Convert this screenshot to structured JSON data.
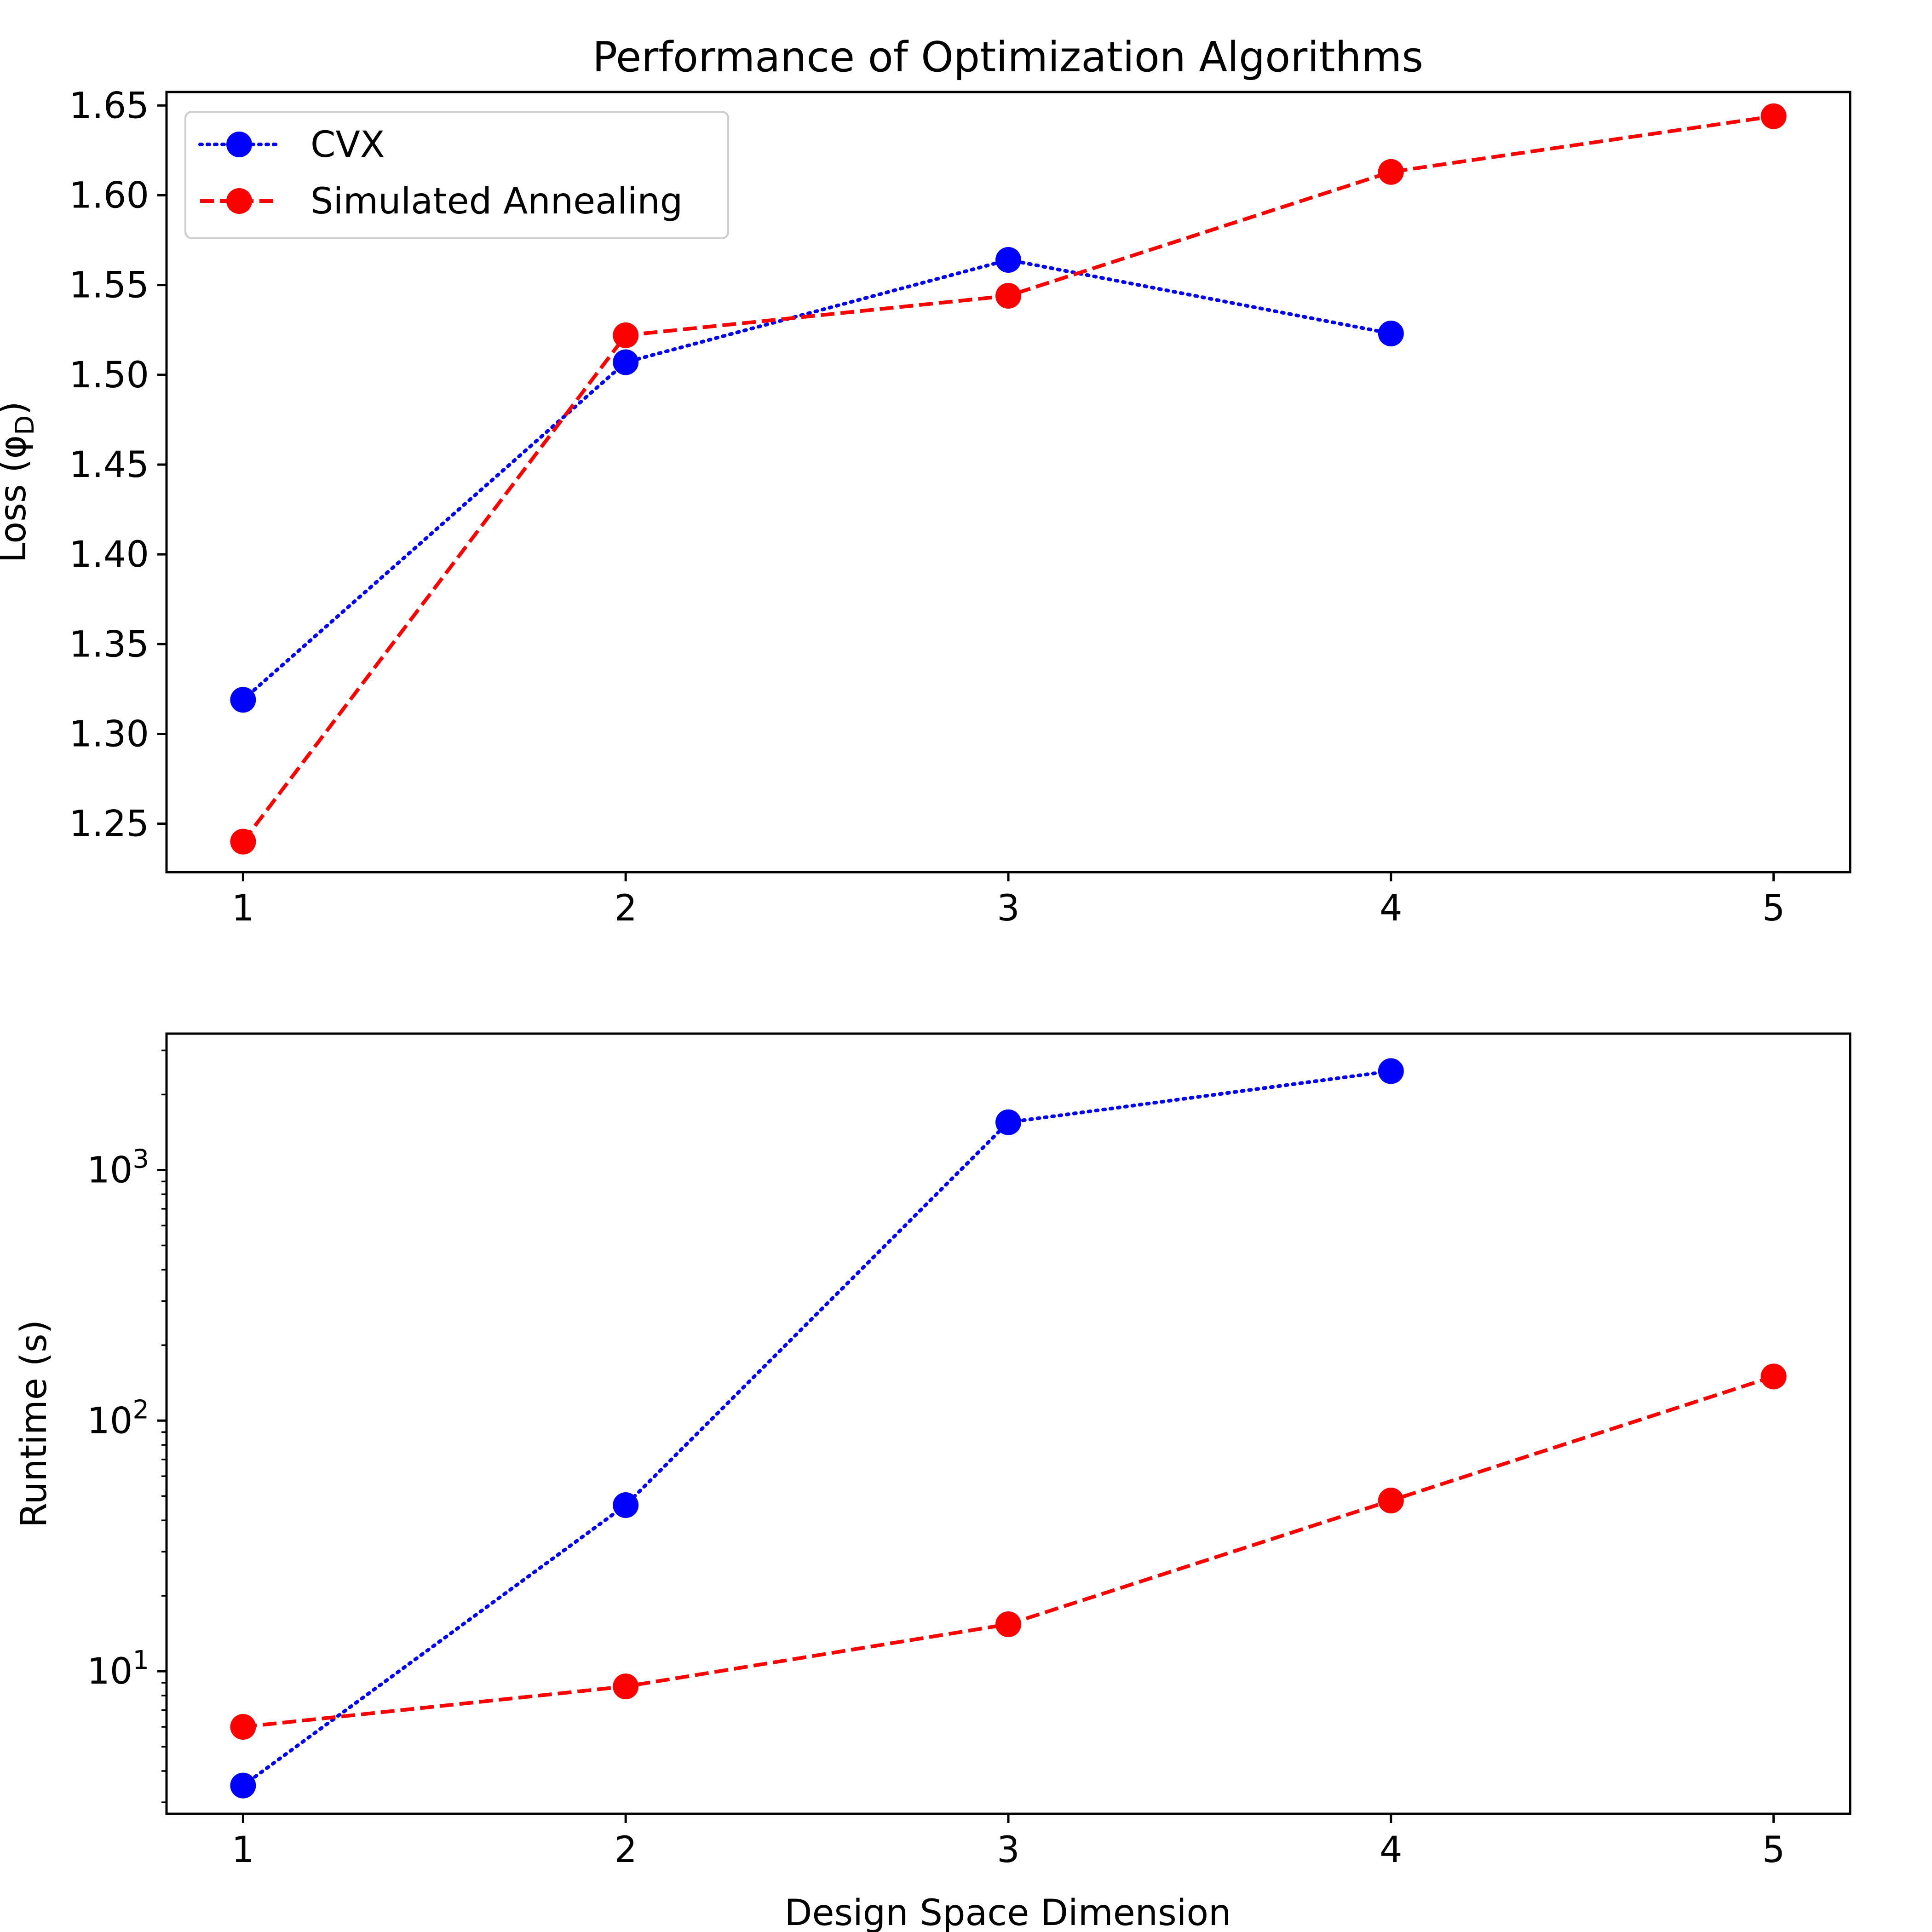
{
  "figure": {
    "title": "Performance of Optimization Algorithms"
  },
  "chart_data": [
    {
      "type": "line",
      "title": "Performance of Optimization Algorithms",
      "xlabel": "",
      "ylabel": "Loss (φ",
      "ylabel_subscript": "D",
      "ylabel_close": ")",
      "x_ticks": [
        "1",
        "2",
        "3",
        "4",
        "5"
      ],
      "y_ticks": [
        "1.25",
        "1.30",
        "1.35",
        "1.40",
        "1.45",
        "1.50",
        "1.55",
        "1.60",
        "1.65"
      ],
      "xlim": [
        0.8,
        5.2
      ],
      "ylim": [
        1.223,
        1.6575
      ],
      "grid": false,
      "legend": "top-left",
      "series": [
        {
          "name": "CVX",
          "color": "#0000ff",
          "linestyle": "dotted",
          "marker": "circle",
          "x": [
            1,
            2,
            3,
            4
          ],
          "y": [
            1.319,
            1.507,
            1.564,
            1.523
          ]
        },
        {
          "name": "Simulated Annealing",
          "color": "#ff0000",
          "linestyle": "dashed",
          "marker": "circle",
          "x": [
            1,
            2,
            3,
            4,
            5
          ],
          "y": [
            1.24,
            1.522,
            1.544,
            1.613,
            1.644
          ]
        }
      ]
    },
    {
      "type": "line",
      "title": "",
      "xlabel": "Design Space Dimension",
      "ylabel": "Runtime (s)",
      "yscale": "log",
      "x_ticks": [
        "1",
        "2",
        "3",
        "4",
        "5"
      ],
      "y_ticks": [
        {
          "base": "10",
          "exp": "1",
          "value": 10
        },
        {
          "base": "10",
          "exp": "2",
          "value": 100
        },
        {
          "base": "10",
          "exp": "3",
          "value": 1000
        }
      ],
      "xlim": [
        0.8,
        5.2
      ],
      "ylim": [
        2.7,
        3500
      ],
      "grid": false,
      "series": [
        {
          "name": "CVX",
          "color": "#0000ff",
          "linestyle": "dotted",
          "marker": "circle",
          "x": [
            1,
            2,
            3,
            4
          ],
          "y": [
            3.5,
            46,
            1550,
            2480
          ]
        },
        {
          "name": "Simulated Annealing",
          "color": "#ff0000",
          "linestyle": "dashed",
          "marker": "circle",
          "x": [
            1,
            2,
            3,
            4,
            5
          ],
          "y": [
            6.0,
            8.7,
            15.4,
            48,
            150
          ]
        }
      ]
    }
  ]
}
